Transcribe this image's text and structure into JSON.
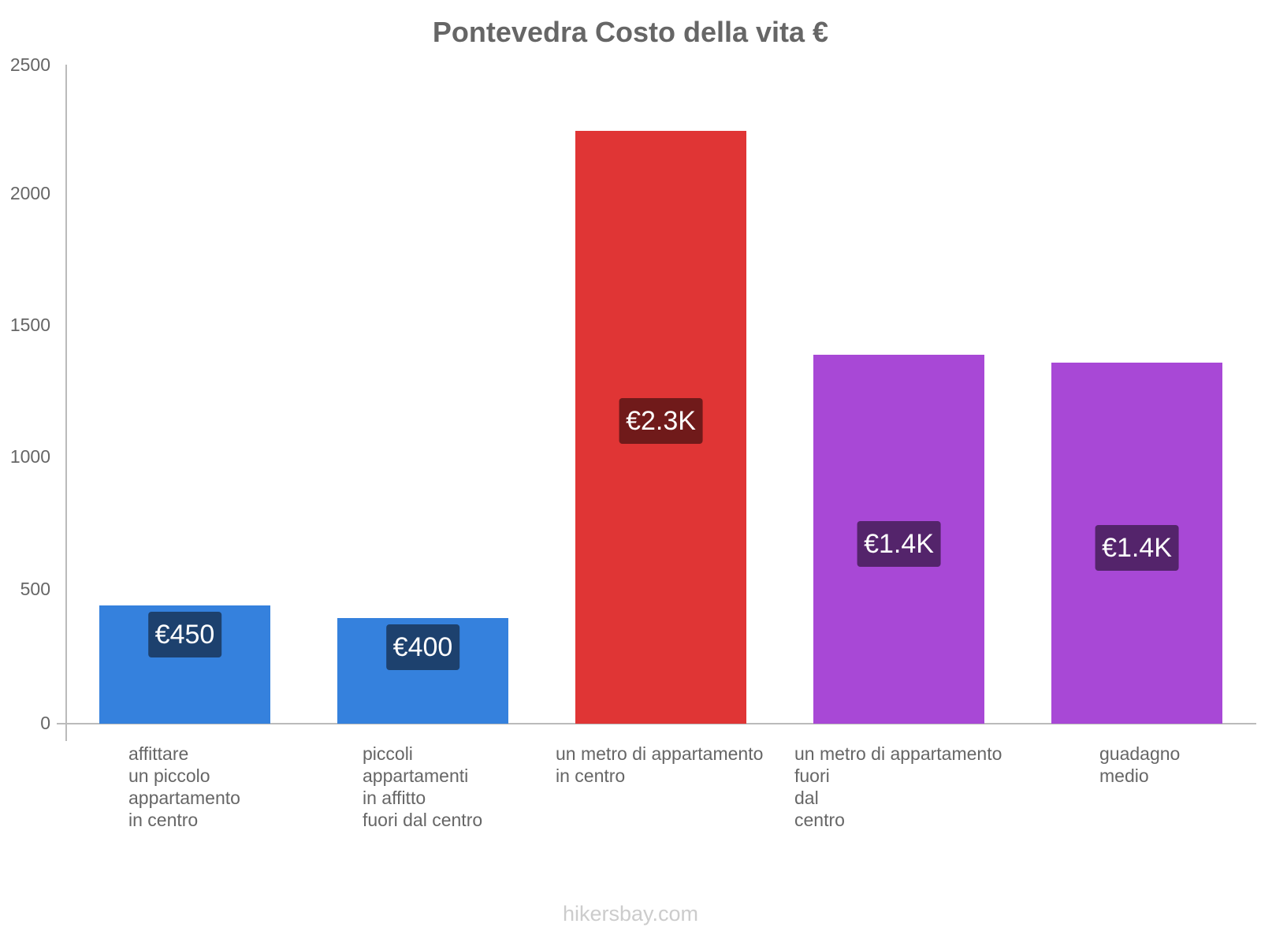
{
  "chart_data": {
    "type": "bar",
    "title": "Pontevedra Costo della vita €",
    "xlabel": "",
    "ylabel": "",
    "ylim": [
      0,
      2500
    ],
    "yticks": [
      0,
      500,
      1000,
      1500,
      2000,
      2500
    ],
    "grid": false,
    "legend": null,
    "categories": [
      "affittare un piccolo appartamento in centro",
      "piccoli appartamenti in affitto fuori dal centro",
      "un metro di appartamento in centro",
      "un metro di appartamento fuori dal centro",
      "guadagno medio"
    ],
    "values": [
      450,
      400,
      2250,
      1400,
      1370
    ],
    "data_labels": [
      "€450",
      "€400",
      "€2.3K",
      "€1.4K",
      "€1.4K"
    ],
    "colors": [
      "#3581dd",
      "#3581dd",
      "#e03535",
      "#a848d6",
      "#a848d6"
    ]
  },
  "title": "Pontevedra Costo della vita €",
  "y_axis": {
    "ticks": [
      {
        "label": "2500",
        "value": 2500
      },
      {
        "label": "2000",
        "value": 2000
      },
      {
        "label": "1500",
        "value": 1500
      },
      {
        "label": "1000",
        "value": 1000
      },
      {
        "label": "500",
        "value": 500
      },
      {
        "label": "0",
        "value": 0
      }
    ]
  },
  "bars": [
    {
      "value": 450,
      "label": "€450",
      "x_label": "affittare\nun piccolo\nappartamento\nin centro",
      "color": "#3581dd",
      "label_bg": "#1d416e"
    },
    {
      "value": 400,
      "label": "€400",
      "x_label": "piccoli\nappartamenti\nin affitto\nfuori dal centro",
      "color": "#3581dd",
      "label_bg": "#1d416e"
    },
    {
      "value": 2250,
      "label": "€2.3K",
      "x_label": "un metro di appartamento\nin centro",
      "color": "#e03535",
      "label_bg": "#701a1a"
    },
    {
      "value": 1400,
      "label": "€1.4K",
      "x_label": "un metro di appartamento\nfuori\ndal\ncentro",
      "color": "#a848d6",
      "label_bg": "#54246b"
    },
    {
      "value": 1370,
      "label": "€1.4K",
      "x_label": "guadagno\nmedio",
      "color": "#a848d6",
      "label_bg": "#54246b"
    }
  ],
  "footer": "hikersbay.com"
}
